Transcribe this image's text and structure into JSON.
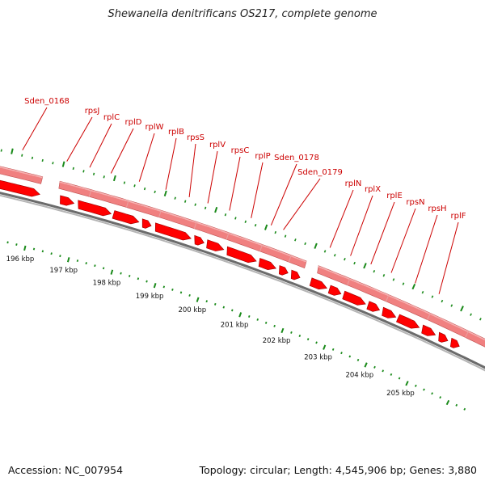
{
  "title": "Shewanella denitrificans OS217, complete genome",
  "footer": {
    "accession": "Accession: NC_007954",
    "summary": "Topology: circular; Length: 4,545,906 bp; Genes: 3,880"
  },
  "colors": {
    "gene_label": "#cc0000",
    "arrow_fill": "#ff0000",
    "arrow_stroke": "#990000",
    "band_fill": "#f08080",
    "band_light": "#f7b2b2",
    "backbone": "#6b6b6b",
    "tick": "#1a8a1a"
  },
  "gene_labels": [
    "Sden_0168",
    "rpsJ",
    "rplC",
    "rplD",
    "rplW",
    "rplB",
    "rpsS",
    "rplV",
    "rpsC",
    "rplP",
    "Sden_0178",
    "Sden_0179",
    "rplN",
    "rplX",
    "rplE",
    "rpsN",
    "rpsH",
    "rplF"
  ],
  "scale_labels": [
    "196 kbp",
    "197 kbp",
    "198 kbp",
    "199 kbp",
    "200 kbp",
    "201 kbp",
    "202 kbp",
    "203 kbp",
    "204 kbp",
    "205 kbp"
  ]
}
